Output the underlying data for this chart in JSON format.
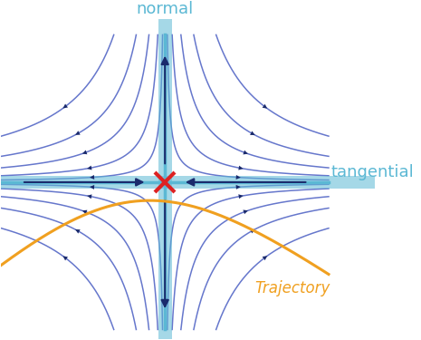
{
  "axis_color": "#5BB8D4",
  "streamline_color": "#6677CC",
  "arrow_color": "#1A2A6C",
  "trajectory_color": "#F0A020",
  "marker_color": "#DD2222",
  "label_normal": "normal",
  "label_tangential": "tangential",
  "label_trajectory": "Trajectory",
  "label_color": "#5BB8D4",
  "xlim": [
    -3.2,
    3.2
  ],
  "ylim": [
    -3.2,
    3.2
  ],
  "figsize": [
    4.65,
    3.75
  ],
  "dpi": 100
}
